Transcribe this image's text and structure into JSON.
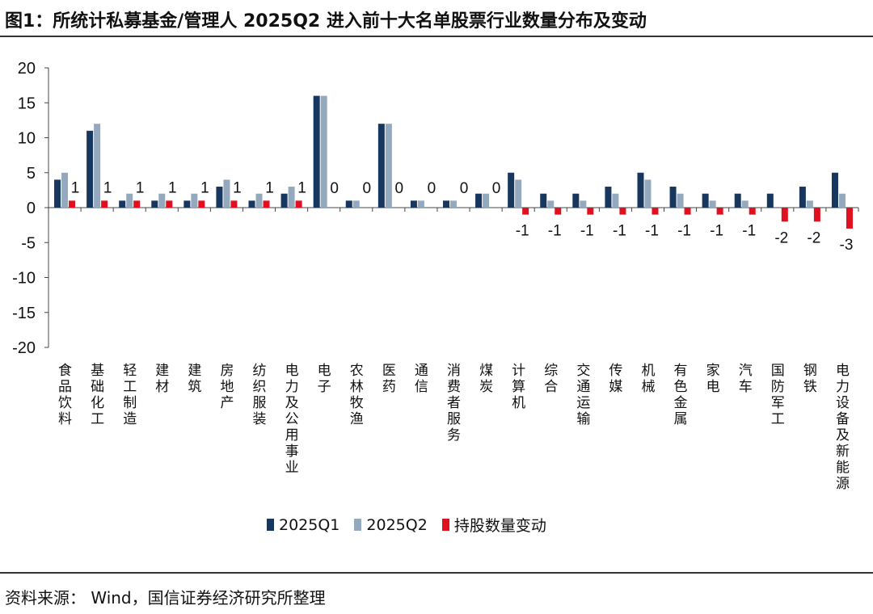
{
  "header": {
    "title": "图1：所统计私募基金/管理人 2025Q2 进入前十大名单股票行业数量分布及变动"
  },
  "footer": {
    "source": "资料来源：  Wind，国信证券经济研究所整理"
  },
  "colors": {
    "q1": "#17375e",
    "q2": "#95a9be",
    "change": "#e0101e",
    "axis": "#444444"
  },
  "chart_data": {
    "type": "bar",
    "title": "图1：所统计私募基金/管理人 2025Q2 进入前十大名单股票行业数量分布及变动",
    "categories": [
      "食品饮料",
      "基础化工",
      "轻工制造",
      "建材",
      "建筑",
      "房地产",
      "纺织服装",
      "电力及公用事业",
      "电子",
      "农林牧渔",
      "医药",
      "通信",
      "消费者服务",
      "煤炭",
      "计算机",
      "综合",
      "交通运输",
      "传媒",
      "机械",
      "有色金属",
      "家电",
      "汽车",
      "国防军工",
      "钢铁",
      "电力设备及新能源"
    ],
    "series": [
      {
        "name": "2025Q1",
        "values": [
          4,
          11,
          1,
          1,
          1,
          3,
          1,
          2,
          16,
          1,
          12,
          1,
          1,
          2,
          5,
          2,
          2,
          3,
          5,
          3,
          2,
          2,
          2,
          3,
          5
        ]
      },
      {
        "name": "2025Q2",
        "values": [
          5,
          12,
          2,
          2,
          2,
          4,
          2,
          3,
          16,
          1,
          12,
          1,
          1,
          2,
          4,
          1,
          1,
          2,
          4,
          2,
          1,
          1,
          0,
          1,
          2
        ]
      },
      {
        "name": "持股数量变动",
        "values": [
          1,
          1,
          1,
          1,
          1,
          1,
          1,
          1,
          0,
          0,
          0,
          0,
          0,
          0,
          -1,
          -1,
          -1,
          -1,
          -1,
          -1,
          -1,
          -1,
          -2,
          -2,
          -3
        ]
      }
    ],
    "ylim": [
      -20,
      20
    ],
    "yticks": [
      "20",
      "15",
      "10",
      "5",
      "0",
      "-5",
      "-10",
      "-15",
      "-20"
    ],
    "legend_position": "bottom",
    "grid": false
  }
}
